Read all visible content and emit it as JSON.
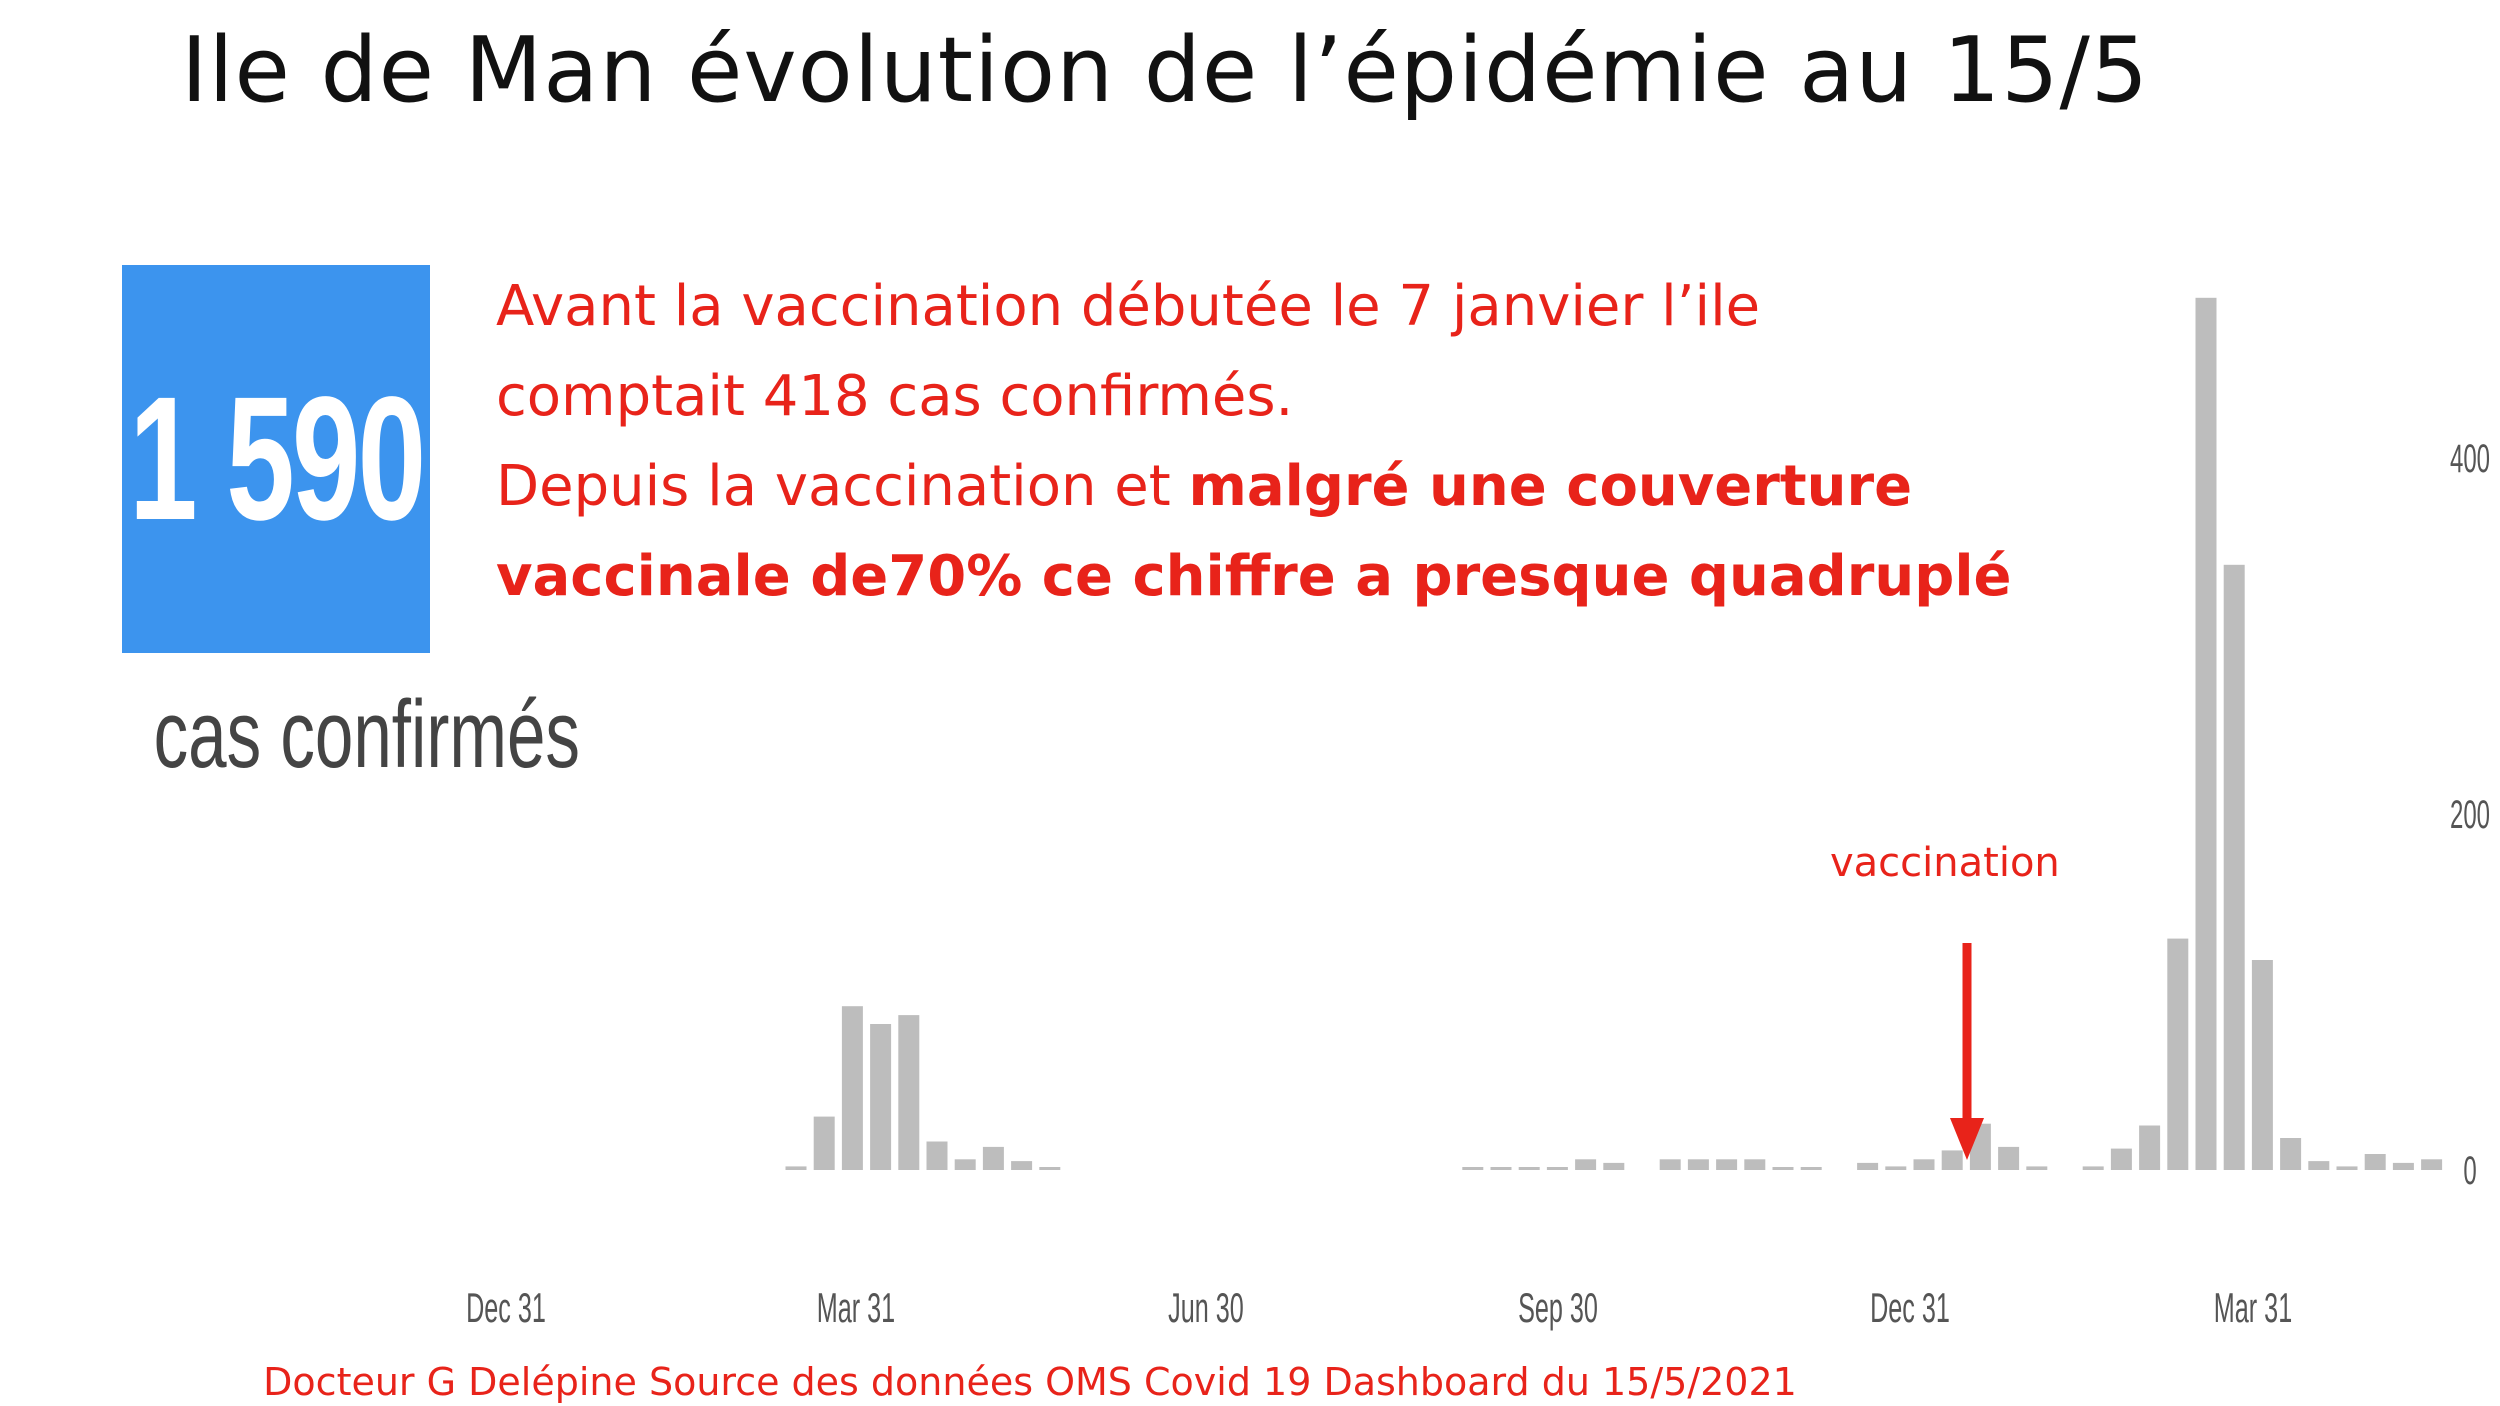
{
  "title": "Ile de Man évolution de l’épidémie au 15/5",
  "total": {
    "number": "1 590",
    "label": "cas confirmés"
  },
  "annotation": {
    "line1": "Avant la vaccination débutée le 7 janvier l’ile",
    "line2": "comptait 418 cas confirmés.",
    "line3_normal": "Depuis la vaccination et ",
    "line3_bold": "malgré une couverture",
    "line4_bold": "vaccinale de70% ce chiffre a presque quadruplé"
  },
  "vaccination_label": "vaccination",
  "footer": "Docteur G Delépine Source des données OMS Covid 19 Dashboard du 15/5/2021",
  "colors": {
    "bar": "#bdbdbd",
    "annotation": "#e8231a",
    "total_box": "#3c94ee"
  },
  "chart_data": {
    "type": "bar",
    "title": "",
    "xlabel": "",
    "ylabel": "",
    "ylim": [
      0,
      500
    ],
    "y_ticks": [
      "0",
      "200",
      "400"
    ],
    "x_ticks": [
      "Dec 31",
      "Mar 31",
      "Jun 30",
      "Sep 30",
      "Dec 31",
      "Mar 31"
    ],
    "series": [
      {
        "values": [
          {
            "week": 13,
            "value": 2
          },
          {
            "week": 14,
            "value": 30
          },
          {
            "week": 15,
            "value": 92
          },
          {
            "week": 16,
            "value": 82
          },
          {
            "week": 17,
            "value": 87
          },
          {
            "week": 18,
            "value": 16
          },
          {
            "week": 19,
            "value": 6
          },
          {
            "week": 20,
            "value": 13
          },
          {
            "week": 21,
            "value": 5
          },
          {
            "week": 22,
            "value": 1
          },
          {
            "week": 37,
            "value": 1
          },
          {
            "week": 38,
            "value": 1
          },
          {
            "week": 39,
            "value": 1
          },
          {
            "week": 40,
            "value": 1
          },
          {
            "week": 41,
            "value": 6
          },
          {
            "week": 42,
            "value": 4
          },
          {
            "week": 44,
            "value": 6
          },
          {
            "week": 45,
            "value": 6
          },
          {
            "week": 46,
            "value": 6
          },
          {
            "week": 47,
            "value": 6
          },
          {
            "week": 48,
            "value": 1
          },
          {
            "week": 49,
            "value": 1
          },
          {
            "week": 51,
            "value": 4
          },
          {
            "week": 52,
            "value": 2
          },
          {
            "week": 53,
            "value": 6
          },
          {
            "week": 54,
            "value": 11
          },
          {
            "week": 55,
            "value": 26
          },
          {
            "week": 56,
            "value": 13
          },
          {
            "week": 57,
            "value": 2
          },
          {
            "week": 59,
            "value": 2
          },
          {
            "week": 60,
            "value": 12
          },
          {
            "week": 61,
            "value": 25
          },
          {
            "week": 62,
            "value": 130
          },
          {
            "week": 63,
            "value": 490
          },
          {
            "week": 64,
            "value": 340
          },
          {
            "week": 65,
            "value": 118
          },
          {
            "week": 66,
            "value": 18
          },
          {
            "week": 67,
            "value": 5
          },
          {
            "week": 68,
            "value": 2
          },
          {
            "week": 69,
            "value": 9
          },
          {
            "week": 70,
            "value": 4
          },
          {
            "week": 71,
            "value": 6
          }
        ]
      }
    ],
    "vaccination_start": "7 janvier"
  }
}
